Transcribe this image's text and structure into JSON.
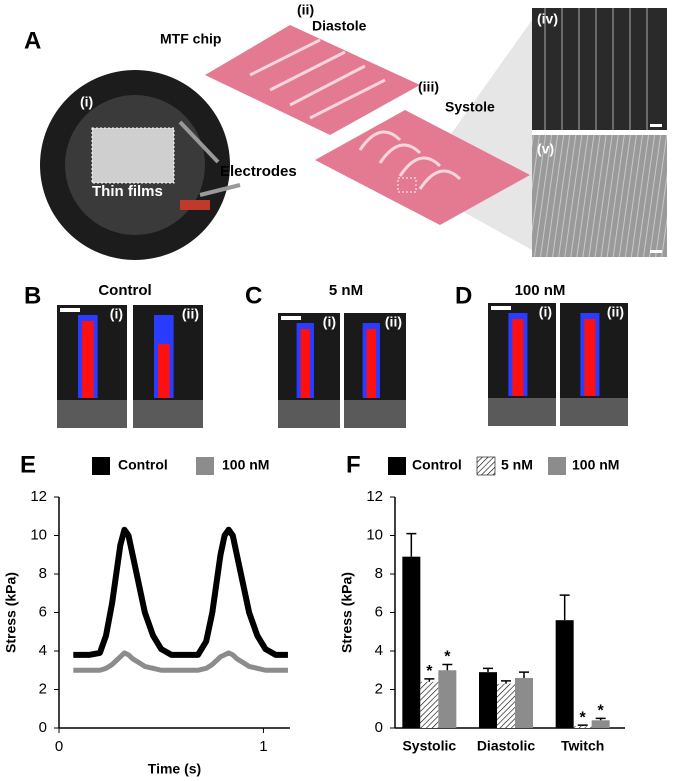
{
  "panel_a": {
    "letter": "A",
    "chip_label": "MTF chip",
    "diastole_num": "(ii)",
    "diastole": "Diastole",
    "systole_num": "(iii)",
    "systole": "Systole",
    "photo_num": "(i)",
    "electrodes": "Electrodes",
    "thin_films": "Thin films",
    "micro_top": "(iv)",
    "micro_bottom": "(v)"
  },
  "panels_bcd": [
    {
      "letter": "B",
      "title": "Control",
      "sub": [
        "(i)",
        "(ii)"
      ]
    },
    {
      "letter": "C",
      "title": "5 nM",
      "sub": [
        "(i)",
        "(ii)"
      ]
    },
    {
      "letter": "D",
      "title": "100 nM",
      "sub": [
        "(i)",
        "(ii)"
      ]
    }
  ],
  "chart_data": [
    {
      "type": "line",
      "label": "E",
      "xlabel": "Time (s)",
      "ylabel": "Stress (kPa)",
      "x": [
        0.07,
        0.15,
        0.2,
        0.23,
        0.26,
        0.28,
        0.3,
        0.32,
        0.34,
        0.36,
        0.39,
        0.42,
        0.46,
        0.5,
        0.55,
        0.62,
        0.68,
        0.72,
        0.75,
        0.77,
        0.79,
        0.81,
        0.83,
        0.85,
        0.87,
        0.9,
        0.93,
        0.97,
        1.01,
        1.06,
        1.12
      ],
      "series": [
        {
          "name": "Control",
          "color": "#000000",
          "values": [
            3.8,
            3.8,
            3.9,
            4.8,
            6.5,
            8.0,
            9.5,
            10.3,
            10.0,
            9.0,
            7.5,
            6.0,
            4.8,
            4.1,
            3.8,
            3.8,
            3.8,
            4.5,
            6.0,
            7.5,
            9.0,
            10.0,
            10.3,
            10.0,
            9.0,
            7.5,
            6.0,
            4.8,
            4.1,
            3.8,
            3.8
          ]
        },
        {
          "name": "100 nM",
          "color": "#8c8c8c",
          "values": [
            3.0,
            3.0,
            3.0,
            3.1,
            3.3,
            3.5,
            3.7,
            3.9,
            3.8,
            3.6,
            3.4,
            3.2,
            3.1,
            3.0,
            3.0,
            3.0,
            3.0,
            3.1,
            3.3,
            3.5,
            3.7,
            3.8,
            3.9,
            3.8,
            3.6,
            3.4,
            3.2,
            3.1,
            3.0,
            3.0,
            3.0
          ]
        }
      ],
      "xlim": [
        0,
        1.13
      ],
      "xticks": [
        0,
        1
      ],
      "ylim": [
        0,
        12
      ],
      "yticks": [
        0,
        2,
        4,
        6,
        8,
        10,
        12
      ]
    },
    {
      "type": "bar",
      "label": "F",
      "ylabel": "Stress (kPa)",
      "categories": [
        "Systolic",
        "Diastolic",
        "Twitch"
      ],
      "series": [
        {
          "name": "Control",
          "color": "#000000",
          "values": [
            8.9,
            2.9,
            5.6
          ],
          "errors": [
            1.2,
            0.2,
            1.3
          ],
          "significance": [
            null,
            null,
            null
          ]
        },
        {
          "name": "5 nM",
          "color": "#ffffff",
          "hatch": true,
          "values": [
            2.4,
            2.3,
            0.1
          ],
          "errors": [
            0.15,
            0.15,
            0.05
          ],
          "significance": [
            "*",
            null,
            "*"
          ]
        },
        {
          "name": "100 nM",
          "color": "#8c8c8c",
          "values": [
            3.0,
            2.6,
            0.4
          ],
          "errors": [
            0.3,
            0.3,
            0.1
          ],
          "significance": [
            "*",
            null,
            "*"
          ]
        }
      ],
      "ylim": [
        0,
        12
      ],
      "yticks": [
        0,
        2,
        4,
        6,
        8,
        10,
        12
      ]
    }
  ]
}
